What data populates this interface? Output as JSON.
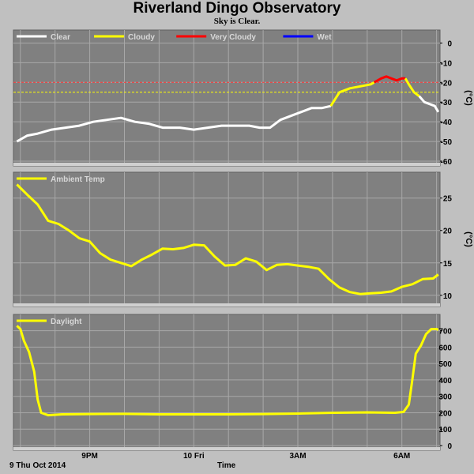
{
  "header": {
    "title": "Riverland Dingo Observatory",
    "subtitle": "Sky is Clear."
  },
  "footer": {
    "date_label": "9 Thu Oct 2014",
    "xlabel": "Time"
  },
  "x_ticks": [
    {
      "label": "9PM",
      "hour": 21
    },
    {
      "label": "10 Fri",
      "hour": 24
    },
    {
      "label": "3AM",
      "hour": 27
    },
    {
      "label": "6AM",
      "hour": 30
    }
  ],
  "colors": {
    "panel_bg": "#808080",
    "frame_bg": "#c0c0c0",
    "grid": "#a8a8a8",
    "clear": "#ffffff",
    "cloudy": "#ffff00",
    "very_cloudy": "#ff0000",
    "wet": "#0000ff",
    "threshold_red": "#ff3030",
    "threshold_yellow": "#ffff00"
  },
  "chart_data": [
    {
      "type": "line",
      "name": "sky",
      "ylabel": "(°C)",
      "ylim": [
        -60,
        5
      ],
      "yticks": [
        0,
        -10,
        -20,
        -30,
        -40,
        -50,
        -60
      ],
      "xlim": [
        18.8,
        31.1
      ],
      "legend": [
        {
          "label": "Clear",
          "color": "#ffffff"
        },
        {
          "label": "Cloudy",
          "color": "#ffff00"
        },
        {
          "label": "Very Cloudy",
          "color": "#ff0000"
        },
        {
          "label": "Wet",
          "color": "#0000ff"
        }
      ],
      "thresholds": [
        {
          "value": -20,
          "color": "#ff3030"
        },
        {
          "value": -25,
          "color": "#ffff00"
        }
      ],
      "segments": [
        {
          "condition": "Clear",
          "color": "#ffffff",
          "x": [
            18.9,
            19.2,
            19.5,
            19.9,
            20.3,
            20.7,
            21.1,
            21.5,
            21.9,
            22.3,
            22.7,
            23.1,
            23.6,
            24.0,
            24.4,
            24.8,
            25.2,
            25.6,
            25.9,
            26.2,
            26.5,
            26.8,
            27.1,
            27.4,
            27.7,
            27.95
          ],
          "y": [
            -50,
            -47,
            -46,
            -44,
            -43,
            -42,
            -40,
            -39,
            -38,
            -40,
            -41,
            -43,
            -43,
            -44,
            -43,
            -42,
            -42,
            -42,
            -43,
            -43,
            -39,
            -37,
            -35,
            -33,
            -33,
            -32
          ]
        },
        {
          "condition": "Cloudy",
          "color": "#ffff00",
          "x": [
            27.95,
            28.2,
            28.5,
            28.8,
            29.1,
            29.2
          ],
          "y": [
            -32,
            -25,
            -23,
            -22,
            -21,
            -20
          ]
        },
        {
          "condition": "Very Cloudy",
          "color": "#ff0000",
          "x": [
            29.2,
            29.4,
            29.55,
            29.7,
            29.85,
            30.0,
            30.1
          ],
          "y": [
            -20,
            -18,
            -17,
            -18,
            -19,
            -18,
            -18
          ]
        },
        {
          "condition": "Cloudy",
          "color": "#ffff00",
          "x": [
            30.1,
            30.2,
            30.35,
            30.5
          ],
          "y": [
            -18,
            -21,
            -25,
            -27
          ]
        },
        {
          "condition": "Clear",
          "color": "#ffffff",
          "x": [
            30.5,
            30.65,
            30.8,
            30.95,
            31.05
          ],
          "y": [
            -27,
            -30,
            -31,
            -32,
            -35
          ]
        }
      ]
    },
    {
      "type": "line",
      "name": "ambient",
      "ylabel": "(°C)",
      "ylim": [
        9,
        28.5
      ],
      "yticks": [
        10,
        15,
        20,
        25
      ],
      "xlim": [
        18.8,
        31.1
      ],
      "legend": [
        {
          "label": "Ambient Temp",
          "color": "#ffff00"
        }
      ],
      "series": [
        {
          "name": "Ambient Temp",
          "color": "#ffff00",
          "x": [
            18.9,
            19.2,
            19.5,
            19.8,
            20.1,
            20.4,
            20.7,
            21.0,
            21.3,
            21.6,
            21.9,
            22.2,
            22.5,
            22.8,
            23.1,
            23.4,
            23.7,
            24.0,
            24.3,
            24.6,
            24.9,
            25.2,
            25.5,
            25.8,
            26.1,
            26.4,
            26.7,
            27.0,
            27.3,
            27.6,
            27.9,
            28.2,
            28.5,
            28.8,
            29.1,
            29.4,
            29.7,
            30.0,
            30.3,
            30.6,
            30.9,
            31.05
          ],
          "y": [
            27.1,
            25.5,
            24.0,
            21.5,
            21.0,
            20.0,
            18.8,
            18.3,
            16.5,
            15.5,
            15.0,
            14.5,
            15.5,
            16.3,
            17.2,
            17.1,
            17.3,
            17.8,
            17.7,
            16.0,
            14.6,
            14.7,
            15.7,
            15.2,
            13.9,
            14.7,
            14.8,
            14.6,
            14.4,
            14.1,
            12.5,
            11.2,
            10.5,
            10.2,
            10.3,
            10.4,
            10.6,
            11.3,
            11.7,
            12.5,
            12.6,
            13.2
          ]
        }
      ]
    },
    {
      "type": "line",
      "name": "daylight",
      "ylabel": "",
      "ylim": [
        0,
        780
      ],
      "yticks": [
        0,
        100,
        200,
        300,
        400,
        500,
        600,
        700
      ],
      "xlim": [
        18.8,
        31.1
      ],
      "legend": [
        {
          "label": "Daylight",
          "color": "#ffff00"
        }
      ],
      "series": [
        {
          "name": "Daylight",
          "color": "#ffff00",
          "x": [
            18.9,
            19.0,
            19.1,
            19.25,
            19.4,
            19.5,
            19.6,
            19.8,
            20.2,
            21.0,
            22.0,
            23.0,
            24.0,
            25.0,
            26.0,
            27.0,
            28.0,
            29.0,
            29.8,
            30.05,
            30.2,
            30.3,
            30.4,
            30.55,
            30.7,
            30.85,
            31.0,
            31.05
          ],
          "y": [
            730,
            710,
            640,
            570,
            450,
            280,
            200,
            185,
            190,
            192,
            193,
            190,
            190,
            190,
            192,
            195,
            200,
            202,
            200,
            205,
            250,
            400,
            560,
            610,
            680,
            710,
            710,
            705
          ]
        }
      ]
    }
  ]
}
